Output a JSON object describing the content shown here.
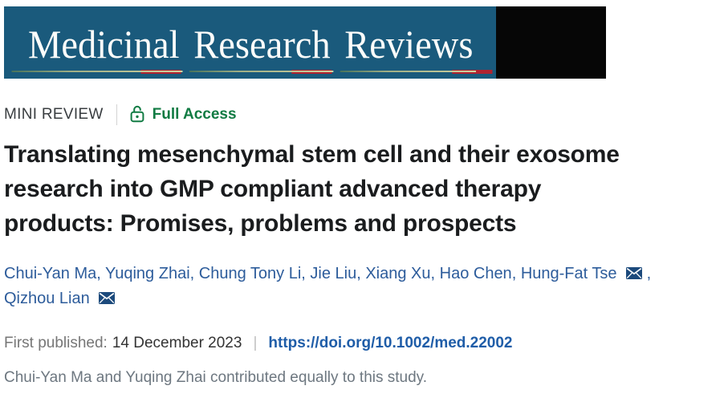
{
  "banner": {
    "journal_words": [
      "Medicinal",
      "Research",
      "Reviews"
    ],
    "bg_color": "#1a5a7c",
    "black_block_color": "#060606",
    "underline_color": "#cfd2a0",
    "accent_red": "#b02430",
    "text_color": "#fbfcfa"
  },
  "meta_bar": {
    "article_type": "MINI REVIEW",
    "access": {
      "label": "Full Access",
      "color": "#117b43",
      "icon": "open-lock-icon"
    }
  },
  "title": {
    "lines": [
      "Translating mesenchymal stem cell and their exosome",
      "research into GMP compliant advanced therapy",
      "products: Promises, problems and prospects"
    ]
  },
  "authors": {
    "color": "#2d5c9b",
    "email_icon": "email-envelope-icon",
    "email_icon_color": "#1c4a7c",
    "list": [
      {
        "name": "Chui-Yan Ma",
        "email": false,
        "sep": ", "
      },
      {
        "name": "Yuqing Zhai",
        "email": false,
        "sep": ", "
      },
      {
        "name": "Chung Tony Li",
        "email": false,
        "sep": ", "
      },
      {
        "name": "Jie Liu",
        "email": false,
        "sep": ", "
      },
      {
        "name": "Xiang Xu",
        "email": false,
        "sep": ", "
      },
      {
        "name": "Hao Chen",
        "email": false,
        "sep": ", "
      },
      {
        "name": "Hung-Fat Tse",
        "email": true,
        "sep": ",",
        "line_break": true
      },
      {
        "name": "Qizhou Lian",
        "email": true,
        "sep": ""
      }
    ]
  },
  "publication": {
    "label": "First published:",
    "date": "14 December 2023",
    "separator": "|",
    "doi_link": "https://doi.org/10.1002/med.22002",
    "doi_color": "#1f5da8"
  },
  "note": {
    "text": "Chui-Yan Ma and Yuqing Zhai contributed equally to this study."
  }
}
